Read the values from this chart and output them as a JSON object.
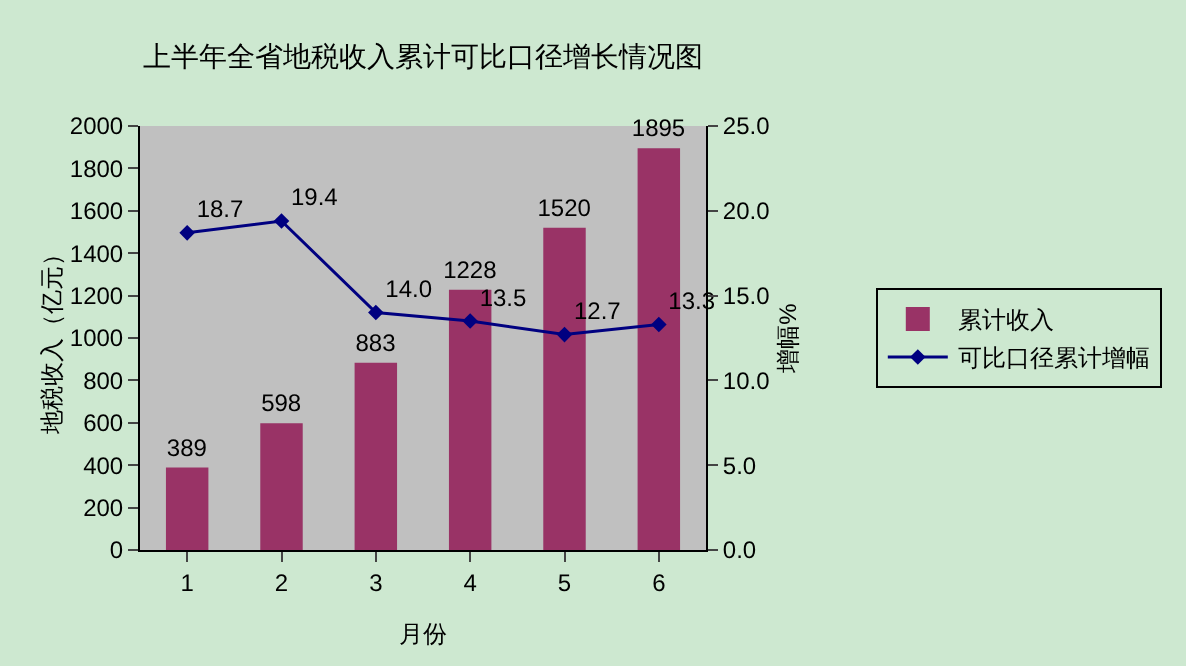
{
  "chart_data": {
    "type": "bar",
    "title": "上半年全省地税收入累计可比口径增长情况图",
    "xlabel": "月份",
    "ylabel": "地税收入（亿元）",
    "y2label": "增幅%",
    "categories": [
      "1",
      "2",
      "3",
      "4",
      "5",
      "6"
    ],
    "series": [
      {
        "name": "累计收入",
        "color": "#993366",
        "values": [
          389,
          598,
          883,
          1228,
          1520,
          1895
        ],
        "value_labels": [
          "389",
          "598",
          "883",
          "1228",
          "1520",
          "1895"
        ]
      },
      {
        "name": "可比口径累计增幅",
        "type": "line",
        "axis": "y2",
        "color": "#000080",
        "marker": "diamond",
        "values": [
          18.7,
          19.4,
          14.0,
          13.5,
          12.7,
          13.3
        ],
        "value_labels": [
          "18.7",
          "19.4",
          "14.0",
          "13.5",
          "12.7",
          "13.3"
        ]
      }
    ],
    "ylim": [
      0,
      2000
    ],
    "yticks": [
      0,
      200,
      400,
      600,
      800,
      1000,
      1200,
      1400,
      1600,
      1800,
      2000
    ],
    "y2lim": [
      0,
      25
    ],
    "y2ticks": [
      {
        "value": 0,
        "label": "0.0"
      },
      {
        "value": 5,
        "label": "5.0"
      },
      {
        "value": 10,
        "label": "10.0"
      },
      {
        "value": 15,
        "label": "15.0"
      },
      {
        "value": 20,
        "label": "20.0"
      },
      {
        "value": 25,
        "label": "25.0"
      }
    ],
    "grid": false,
    "legend": "right"
  }
}
